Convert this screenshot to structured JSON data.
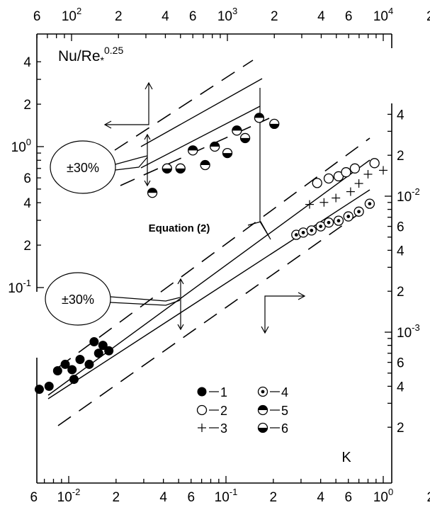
{
  "chart_data": {
    "type": "scatter",
    "ylabel_base": "Nu/Re",
    "ylabel_sub": "*",
    "ylabel_exp": "0.25",
    "xlabel": "K",
    "equation_label": "Equation (2)",
    "band_label_upper": "±30%",
    "band_label_lower": "±30%",
    "bottom_ticks": [
      {
        "t": "6",
        "v": 0.006
      },
      {
        "t": "10",
        "e": "-2",
        "v": 0.01
      },
      {
        "t": "2",
        "v": 0.02
      },
      {
        "t": "4",
        "v": 0.04
      },
      {
        "t": "6",
        "v": 0.06
      },
      {
        "t": "10",
        "e": "-1",
        "v": 0.1
      },
      {
        "t": "2",
        "v": 0.2
      },
      {
        "t": "4",
        "v": 0.4
      },
      {
        "t": "6",
        "v": 0.6
      },
      {
        "t": "10",
        "e": "0",
        "v": 1
      },
      {
        "t": "2",
        "v": 2
      }
    ],
    "top_ticks": [
      {
        "t": "6",
        "v": 60
      },
      {
        "t": "10",
        "e": "2",
        "v": 100
      },
      {
        "t": "2",
        "v": 200
      },
      {
        "t": "4",
        "v": 400
      },
      {
        "t": "6",
        "v": 600
      },
      {
        "t": "10",
        "e": "3",
        "v": 1000
      },
      {
        "t": "2",
        "v": 2000
      },
      {
        "t": "4",
        "v": 4000
      },
      {
        "t": "6",
        "v": 6000
      },
      {
        "t": "10",
        "e": "4",
        "v": 10000
      },
      {
        "t": "2",
        "v": 20000
      }
    ],
    "left_ticks": [
      {
        "t": "4",
        "v": 4
      },
      {
        "t": "2",
        "v": 2
      },
      {
        "t": "10",
        "e": "0",
        "v": 1
      },
      {
        "t": "6",
        "v": 0.6
      },
      {
        "t": "4",
        "v": 0.4
      },
      {
        "t": "2",
        "v": 0.2
      },
      {
        "t": "10",
        "e": "-1",
        "v": 0.1
      }
    ],
    "right_ticks": [
      {
        "t": "4",
        "v": 0.04
      },
      {
        "t": "2",
        "v": 0.02
      },
      {
        "t": "10",
        "e": "-2",
        "v": 0.01
      },
      {
        "t": "6",
        "v": 0.006
      },
      {
        "t": "4",
        "v": 0.004
      },
      {
        "t": "2",
        "v": 0.002
      },
      {
        "t": "10",
        "e": "-3",
        "v": 0.001
      },
      {
        "t": "6",
        "v": 0.0006
      },
      {
        "t": "4",
        "v": 0.0004
      },
      {
        "t": "2",
        "v": 0.0002
      }
    ],
    "legend": [
      {
        "symbol": "filled",
        "label": "1"
      },
      {
        "symbol": "open",
        "label": "2"
      },
      {
        "symbol": "plus",
        "label": "3"
      },
      {
        "symbol": "dotted",
        "label": "4"
      },
      {
        "symbol": "half-top",
        "label": "5"
      },
      {
        "symbol": "half-bottom",
        "label": "6"
      }
    ],
    "series": [
      {
        "symbol": "filled",
        "axes": "bottom-right",
        "points": [
          [
            0.0065,
            0.00038
          ],
          [
            0.0075,
            0.0004
          ],
          [
            0.0085,
            0.00052
          ],
          [
            0.0095,
            0.00058
          ],
          [
            0.0105,
            0.00053
          ],
          [
            0.0108,
            0.00045
          ],
          [
            0.0118,
            0.00063
          ],
          [
            0.0135,
            0.00058
          ],
          [
            0.0155,
            0.0007
          ],
          [
            0.0145,
            0.00085
          ],
          [
            0.0165,
            0.0008
          ],
          [
            0.018,
            0.00073
          ]
        ]
      },
      {
        "symbol": "open",
        "axes": "bottom-right",
        "points": [
          [
            0.38,
            0.0125
          ],
          [
            0.45,
            0.0135
          ],
          [
            0.52,
            0.014
          ],
          [
            0.58,
            0.015
          ],
          [
            0.66,
            0.016
          ],
          [
            0.88,
            0.0175
          ]
        ]
      },
      {
        "symbol": "plus",
        "axes": "bottom-right",
        "points": [
          [
            0.34,
            0.0087
          ],
          [
            0.42,
            0.009
          ],
          [
            0.5,
            0.0097
          ],
          [
            0.62,
            0.0108
          ],
          [
            0.7,
            0.0124
          ],
          [
            0.8,
            0.0145
          ],
          [
            1.0,
            0.0155
          ]
        ]
      },
      {
        "symbol": "dotted",
        "axes": "bottom-right",
        "points": [
          [
            0.28,
            0.0052
          ],
          [
            0.31,
            0.0054
          ],
          [
            0.35,
            0.0056
          ],
          [
            0.4,
            0.006
          ],
          [
            0.45,
            0.0064
          ],
          [
            0.52,
            0.0066
          ],
          [
            0.6,
            0.0071
          ],
          [
            0.7,
            0.0077
          ],
          [
            0.82,
            0.0088
          ]
        ]
      },
      {
        "symbol": "half-top",
        "axes": "top-left",
        "points": [
          [
            330,
            0.47
          ],
          [
            600,
            0.94
          ],
          [
            720,
            0.74
          ],
          [
            830,
            1.0
          ],
          [
            1150,
            1.3
          ],
          [
            1600,
            1.6
          ]
        ]
      },
      {
        "symbol": "half-bottom",
        "axes": "top-left",
        "points": [
          [
            410,
            0.7
          ],
          [
            500,
            0.7
          ],
          [
            1000,
            0.9
          ],
          [
            1300,
            1.15
          ],
          [
            2000,
            1.45
          ]
        ]
      }
    ]
  }
}
